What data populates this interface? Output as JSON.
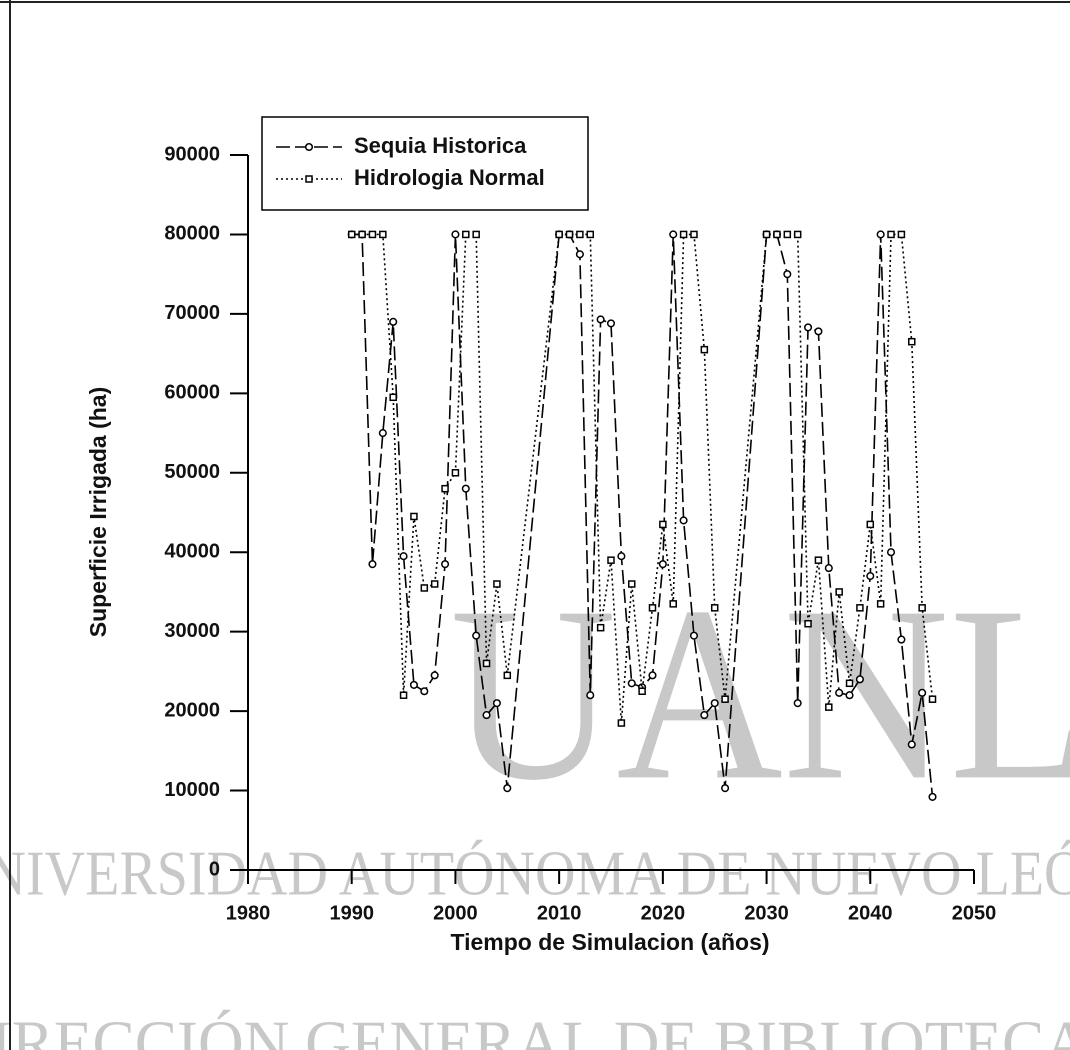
{
  "chart_data": {
    "type": "line",
    "xlabel": "Tiempo de Simulacion (años)",
    "ylabel": "Superficie Irrigada (ha)",
    "xlim": [
      1980,
      2050
    ],
    "xticks": [
      1980,
      1990,
      2000,
      2010,
      2020,
      2030,
      2040,
      2050
    ],
    "ylim": [
      0,
      90000
    ],
    "yticks": [
      0,
      10000,
      20000,
      30000,
      40000,
      50000,
      60000,
      70000,
      80000,
      90000
    ],
    "legend": "upper left",
    "watermark": [
      "UANL",
      "UNIVERSIDAD AUTÓNOMA DE NUEVO LEÓN",
      "DIRECCIÓN GENERAL DE BIBLIOTECAS"
    ],
    "series": [
      {
        "name": "Sequia Historica",
        "color": "#000000",
        "dash": "dashed",
        "marker": "circle",
        "x": [
          1990,
          1991,
          1992,
          1993,
          1994,
          1995,
          1996,
          1997,
          1998,
          1999,
          2000,
          2001,
          2002,
          2003,
          2004,
          2005,
          2010,
          2011,
          2012,
          2013,
          2014,
          2015,
          2016,
          2017,
          2018,
          2019,
          2020,
          2021,
          2022,
          2023,
          2024,
          2025,
          2026,
          2030,
          2031,
          2032,
          2033,
          2034,
          2035,
          2036,
          2037,
          2038,
          2039,
          2040,
          2041,
          2042,
          2043,
          2044,
          2045,
          2046
        ],
        "values": [
          80000,
          80000,
          38500,
          55000,
          69000,
          39500,
          23300,
          22500,
          24500,
          38500,
          80000,
          48000,
          29500,
          19500,
          21000,
          10300,
          80000,
          80000,
          77500,
          22000,
          69300,
          68800,
          39500,
          23500,
          23000,
          24500,
          38500,
          80000,
          44000,
          29500,
          19500,
          21000,
          10300,
          80000,
          80000,
          75000,
          21000,
          68300,
          67800,
          38000,
          22300,
          22000,
          24000,
          37000,
          80000,
          40000,
          29000,
          15800,
          22300,
          9200
        ]
      },
      {
        "name": "Hidrologia Normal",
        "color": "#000000",
        "dash": "dotted",
        "marker": "square",
        "x": [
          1990,
          1991,
          1992,
          1993,
          1994,
          1995,
          1996,
          1997,
          1998,
          1999,
          2000,
          2001,
          2002,
          2003,
          2004,
          2005,
          2010,
          2011,
          2012,
          2013,
          2014,
          2015,
          2016,
          2017,
          2018,
          2019,
          2020,
          2021,
          2022,
          2023,
          2024,
          2025,
          2026,
          2030,
          2031,
          2032,
          2033,
          2034,
          2035,
          2036,
          2037,
          2038,
          2039,
          2040,
          2041,
          2042,
          2043,
          2044,
          2045,
          2046
        ],
        "values": [
          80000,
          80000,
          80000,
          80000,
          59500,
          22000,
          44500,
          35500,
          36000,
          48000,
          50000,
          80000,
          80000,
          26000,
          36000,
          24500,
          80000,
          80000,
          80000,
          80000,
          30500,
          39000,
          18500,
          36000,
          22500,
          33000,
          43500,
          33500,
          80000,
          80000,
          65500,
          33000,
          21500,
          80000,
          80000,
          80000,
          80000,
          31000,
          39000,
          20500,
          35000,
          23500,
          33000,
          43500,
          33500,
          80000,
          80000,
          66500,
          33000,
          21500
        ]
      }
    ]
  }
}
